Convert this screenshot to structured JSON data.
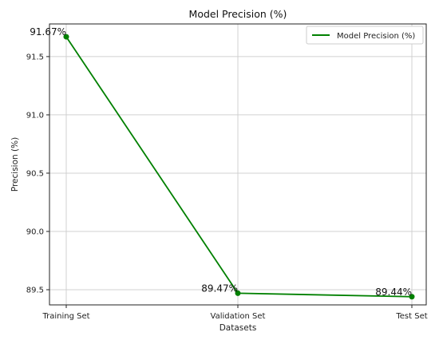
{
  "chart_data": {
    "type": "line",
    "title": "Model Precision (%)",
    "xlabel": "Datasets",
    "ylabel": "Precision (%)",
    "categories": [
      "Training Set",
      "Validation Set",
      "Test Set"
    ],
    "series": [
      {
        "name": "Model Precision (%)",
        "values": [
          91.67,
          89.47,
          89.44
        ],
        "labels": [
          "91.67%",
          "89.47%",
          "89.44%"
        ],
        "color": "#008000"
      }
    ],
    "yticks": [
      "89.5",
      "90.0",
      "90.5",
      "91.0",
      "91.5"
    ],
    "ylim": [
      89.37,
      91.78
    ],
    "grid": true,
    "legend": "top-right"
  }
}
